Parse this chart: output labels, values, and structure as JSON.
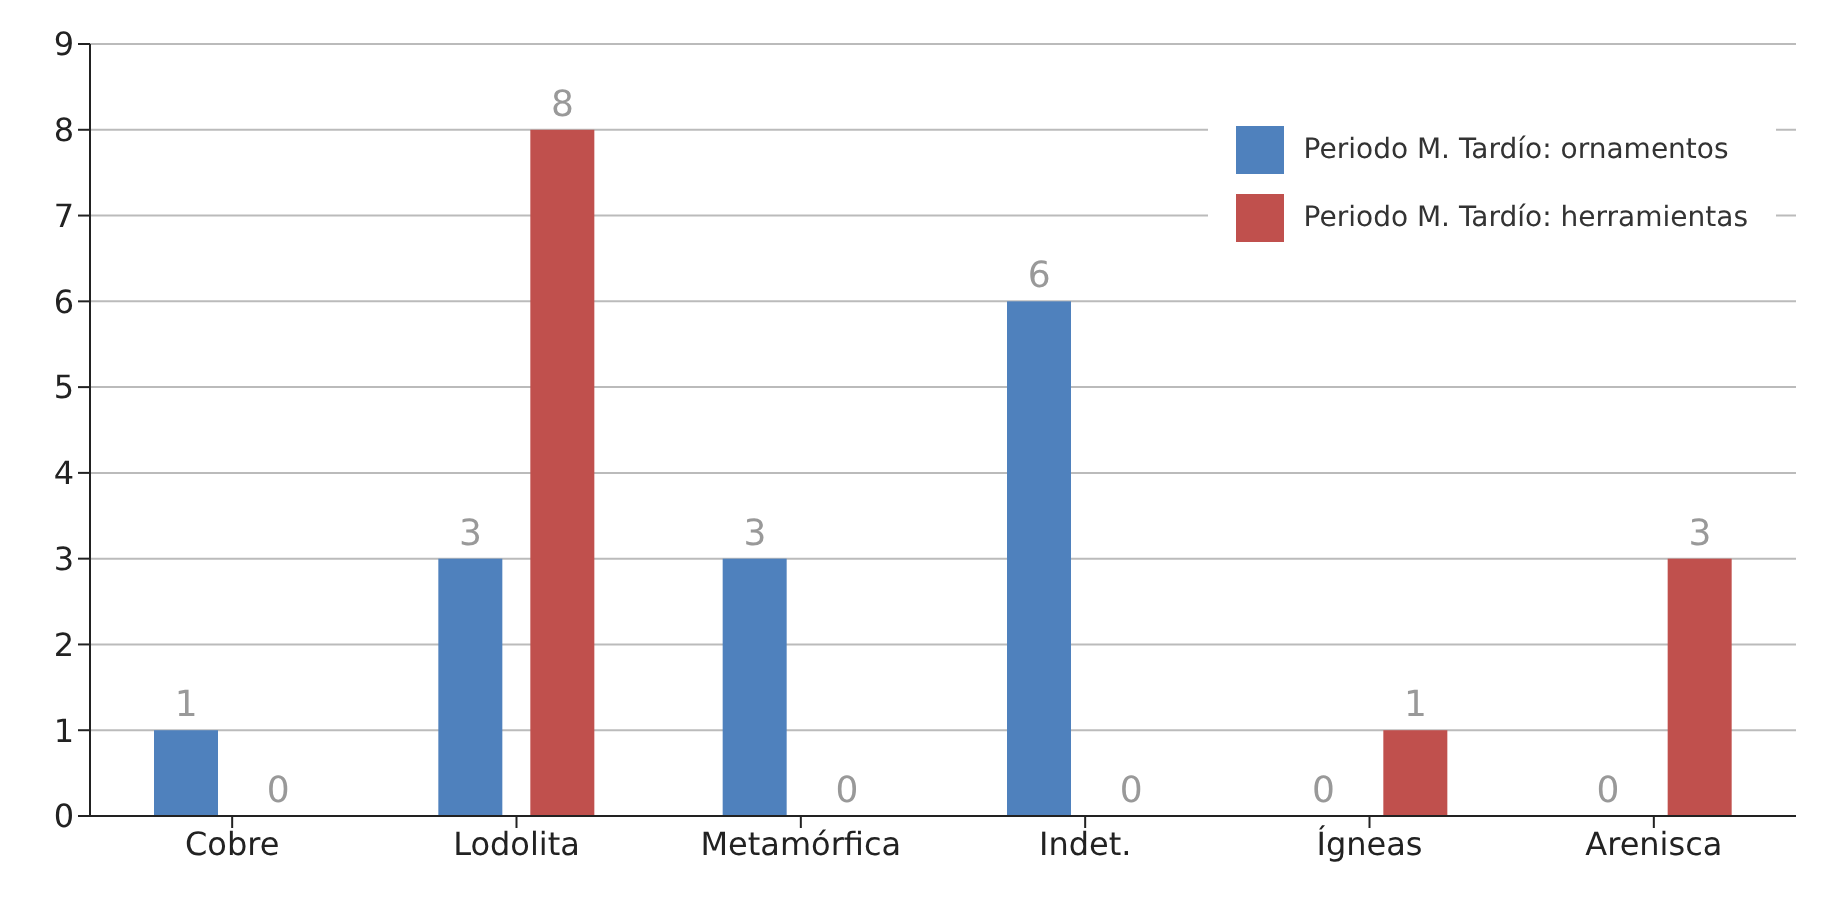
{
  "chart_data": {
    "type": "bar",
    "categories": [
      "Cobre",
      "Lodolita",
      "Metamórfica",
      "Indet.",
      "Ígneas",
      "Arenisca"
    ],
    "series": [
      {
        "name": "Periodo M. Tardío: ornamentos",
        "color": "#4f81bd",
        "values": [
          1,
          3,
          3,
          6,
          0,
          0
        ]
      },
      {
        "name": "Periodo M. Tardío: herramientas",
        "color": "#c0504d",
        "values": [
          0,
          8,
          0,
          0,
          1,
          3
        ]
      }
    ],
    "ylim": [
      0,
      9
    ],
    "yticks": [
      0,
      1,
      2,
      3,
      4,
      5,
      6,
      7,
      8,
      9
    ],
    "grid": "y",
    "legend": "top right",
    "data_labels": true
  }
}
